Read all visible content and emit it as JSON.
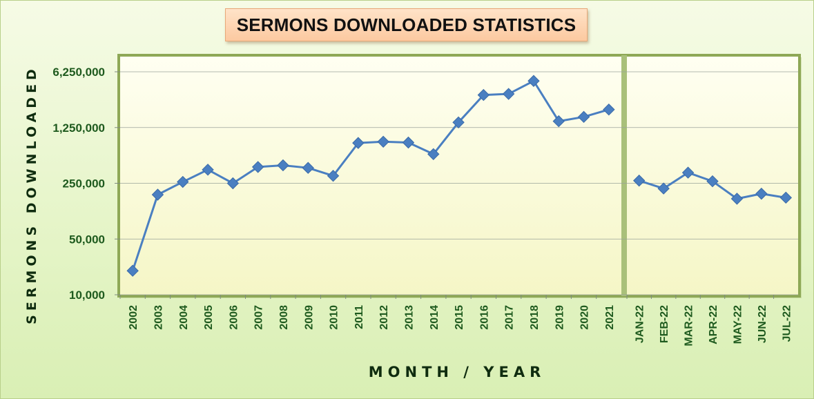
{
  "chart_data": {
    "type": "line",
    "title": "SERMONS DOWNLOADED STATISTICS",
    "xlabel": "MONTH / YEAR",
    "ylabel": "SERMONS DOWNLOADED",
    "y_scale": "log",
    "ylim": [
      10000,
      6250000
    ],
    "y_ticks": [
      10000,
      50000,
      250000,
      1250000,
      6250000
    ],
    "y_tick_labels": [
      "10,000",
      "50,000",
      "250,000",
      "1,250,000",
      "6,250,000"
    ],
    "grid": true,
    "line_color": "#4a7fc1",
    "panels": [
      {
        "categories": [
          "2002",
          "2003",
          "2004",
          "2005",
          "2006",
          "2007",
          "2008",
          "2009",
          "2010",
          "2011",
          "2012",
          "2013",
          "2014",
          "2015",
          "2016",
          "2017",
          "2018",
          "2019",
          "2020",
          "2021"
        ],
        "values": [
          20000,
          180000,
          260000,
          370000,
          250000,
          400000,
          420000,
          390000,
          310000,
          800000,
          830000,
          810000,
          580000,
          1450000,
          3200000,
          3300000,
          4800000,
          1500000,
          1700000,
          2100000
        ]
      },
      {
        "categories": [
          "JAN-22",
          "FEB-22",
          "MAR-22",
          "APR-22",
          "MAY-22",
          "JUN-22",
          "JUL-22"
        ],
        "values": [
          270000,
          215000,
          340000,
          265000,
          160000,
          185000,
          165000
        ]
      }
    ]
  }
}
